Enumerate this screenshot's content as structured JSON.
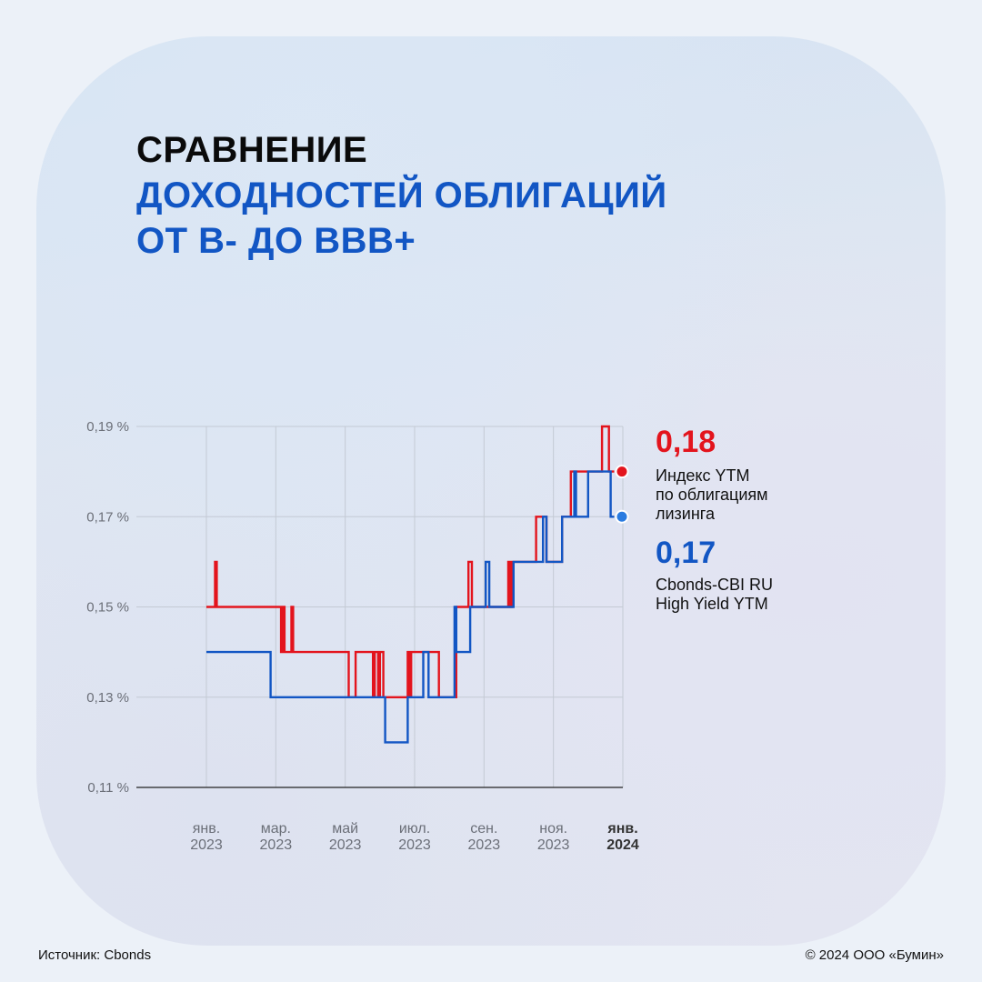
{
  "title": {
    "line1": "СРАВНЕНИЕ",
    "line2": "ДОХОДНОСТЕЙ ОБЛИГАЦИЙ",
    "line3": "ОТ B- ДО BBB+"
  },
  "legend": {
    "red": {
      "value": "0,18",
      "label": "Индекс YTM\nпо облигациям\nлизинга"
    },
    "blue": {
      "value": "0,17",
      "label": "Cbonds-CBI RU\nHigh Yield YTM"
    }
  },
  "footer": {
    "source": "Источник: Cbonds",
    "copyright": "© 2024 ООО «Бумин»"
  },
  "colors": {
    "red": "#e3141d",
    "blue": "#1256c4",
    "blue_dot": "#2a7be0"
  },
  "chart_data": {
    "type": "line",
    "ylim": [
      0.11,
      0.19
    ],
    "yticks": [
      0.11,
      0.13,
      0.15,
      0.17,
      0.19
    ],
    "ytick_labels": [
      "0,11 %",
      "0,13 %",
      "0,15 %",
      "0,17 %",
      "0,19 %"
    ],
    "xlim": [
      0,
      12
    ],
    "xticks": [
      0,
      2,
      4,
      6,
      8,
      10,
      12
    ],
    "xtick_labels": [
      [
        "янв.",
        "2023"
      ],
      [
        "мар.",
        "2023"
      ],
      [
        "май",
        "2023"
      ],
      [
        "июл.",
        "2023"
      ],
      [
        "сен.",
        "2023"
      ],
      [
        "ноя.",
        "2023"
      ],
      [
        "янв.",
        "2024"
      ]
    ],
    "grid": true,
    "series": [
      {
        "name": "Индекс YTM по облигациям лизинга",
        "color": "#e3141d",
        "points": [
          [
            0,
            0.15
          ],
          [
            0.25,
            0.15
          ],
          [
            0.25,
            0.16
          ],
          [
            0.3,
            0.16
          ],
          [
            0.3,
            0.15
          ],
          [
            2.15,
            0.15
          ],
          [
            2.15,
            0.14
          ],
          [
            2.2,
            0.14
          ],
          [
            2.2,
            0.15
          ],
          [
            2.25,
            0.15
          ],
          [
            2.25,
            0.14
          ],
          [
            2.45,
            0.14
          ],
          [
            2.45,
            0.15
          ],
          [
            2.5,
            0.15
          ],
          [
            2.5,
            0.14
          ],
          [
            4.1,
            0.14
          ],
          [
            4.1,
            0.13
          ],
          [
            4.3,
            0.13
          ],
          [
            4.3,
            0.14
          ],
          [
            4.8,
            0.14
          ],
          [
            4.8,
            0.13
          ],
          [
            4.85,
            0.13
          ],
          [
            4.85,
            0.14
          ],
          [
            4.95,
            0.14
          ],
          [
            4.95,
            0.13
          ],
          [
            5.0,
            0.13
          ],
          [
            5.0,
            0.14
          ],
          [
            5.1,
            0.14
          ],
          [
            5.1,
            0.13
          ],
          [
            5.8,
            0.13
          ],
          [
            5.8,
            0.14
          ],
          [
            5.85,
            0.14
          ],
          [
            5.85,
            0.13
          ],
          [
            5.9,
            0.13
          ],
          [
            5.9,
            0.14
          ],
          [
            6.7,
            0.14
          ],
          [
            6.7,
            0.13
          ],
          [
            7.2,
            0.13
          ],
          [
            7.2,
            0.15
          ],
          [
            7.55,
            0.15
          ],
          [
            7.55,
            0.16
          ],
          [
            7.65,
            0.16
          ],
          [
            7.65,
            0.15
          ],
          [
            8.7,
            0.15
          ],
          [
            8.7,
            0.16
          ],
          [
            8.75,
            0.16
          ],
          [
            8.75,
            0.15
          ],
          [
            8.8,
            0.15
          ],
          [
            8.8,
            0.16
          ],
          [
            9.5,
            0.16
          ],
          [
            9.5,
            0.17
          ],
          [
            9.8,
            0.17
          ],
          [
            9.8,
            0.16
          ],
          [
            10.25,
            0.16
          ],
          [
            10.25,
            0.17
          ],
          [
            10.5,
            0.17
          ],
          [
            10.5,
            0.18
          ],
          [
            11.4,
            0.18
          ],
          [
            11.4,
            0.19
          ],
          [
            11.6,
            0.19
          ],
          [
            11.6,
            0.18
          ],
          [
            11.75,
            0.18
          ]
        ]
      },
      {
        "name": "Cbonds-CBI RU High Yield YTM",
        "color": "#1256c4",
        "points": [
          [
            0,
            0.14
          ],
          [
            1.85,
            0.14
          ],
          [
            1.85,
            0.13
          ],
          [
            5.15,
            0.13
          ],
          [
            5.15,
            0.12
          ],
          [
            5.8,
            0.12
          ],
          [
            5.8,
            0.13
          ],
          [
            6.25,
            0.13
          ],
          [
            6.25,
            0.14
          ],
          [
            6.4,
            0.14
          ],
          [
            6.4,
            0.13
          ],
          [
            7.15,
            0.13
          ],
          [
            7.15,
            0.15
          ],
          [
            7.2,
            0.15
          ],
          [
            7.2,
            0.14
          ],
          [
            7.6,
            0.14
          ],
          [
            7.6,
            0.15
          ],
          [
            8.05,
            0.15
          ],
          [
            8.05,
            0.16
          ],
          [
            8.15,
            0.16
          ],
          [
            8.15,
            0.15
          ],
          [
            8.85,
            0.15
          ],
          [
            8.85,
            0.16
          ],
          [
            9.7,
            0.16
          ],
          [
            9.7,
            0.17
          ],
          [
            9.8,
            0.17
          ],
          [
            9.8,
            0.16
          ],
          [
            10.25,
            0.16
          ],
          [
            10.25,
            0.17
          ],
          [
            10.6,
            0.17
          ],
          [
            10.6,
            0.18
          ],
          [
            10.65,
            0.18
          ],
          [
            10.65,
            0.17
          ],
          [
            11.0,
            0.17
          ],
          [
            11.0,
            0.18
          ],
          [
            11.65,
            0.18
          ],
          [
            11.65,
            0.17
          ],
          [
            11.75,
            0.17
          ]
        ]
      }
    ]
  }
}
